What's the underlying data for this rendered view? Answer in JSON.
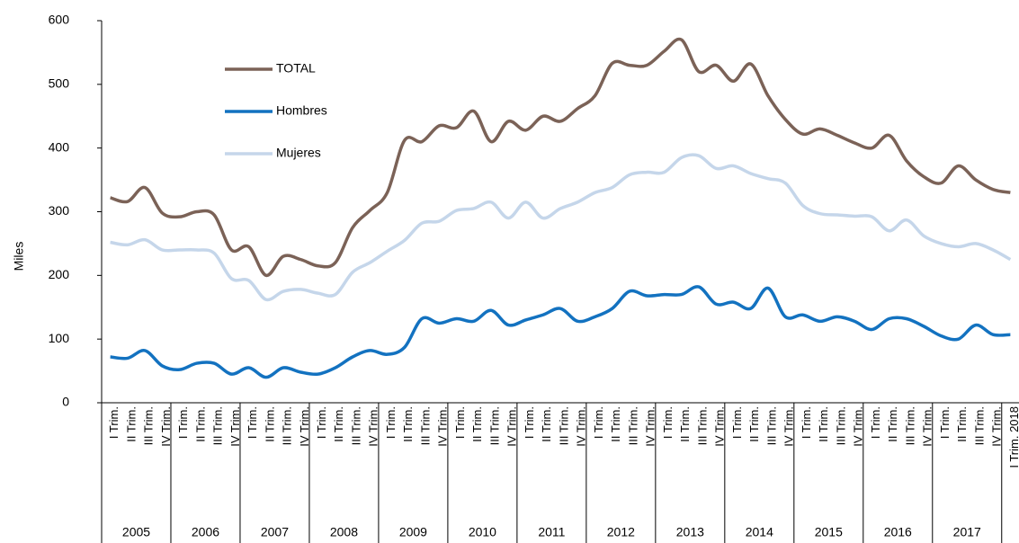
{
  "chart_data": {
    "type": "line",
    "y_label": "Miles",
    "categories": [
      "I Trim.",
      "II Trim.",
      "III Trim.",
      "IV Trim.",
      "I Trim.",
      "II Trim.",
      "III Trim.",
      "IV Trim.",
      "I Trim.",
      "II Trim.",
      "III Trim.",
      "IV Trim.",
      "I Trim.",
      "II Trim.",
      "III Trim.",
      "IV Trim.",
      "I Trim.",
      "II Trim.",
      "III Trim.",
      "IV Trim.",
      "I Trim.",
      "II Trim.",
      "III Trim.",
      "IV Trim.",
      "I Trim.",
      "II Trim.",
      "III Trim.",
      "IV Trim.",
      "I Trim.",
      "II Trim.",
      "III Trim.",
      "IV Trim.",
      "I Trim.",
      "II Trim.",
      "III Trim.",
      "IV Trim.",
      "I Trim.",
      "II Trim.",
      "III Trim.",
      "IV Trim.",
      "I Trim.",
      "II Trim.",
      "III Trim.",
      "IV Trim.",
      "I Trim.",
      "II Trim.",
      "III Trim.",
      "IV Trim.",
      "I Trim.",
      "II Trim.",
      "III Trim.",
      "IV Trim.",
      "I Trim. 2018"
    ],
    "years": [
      "2005",
      "2006",
      "2007",
      "2008",
      "2009",
      "2010",
      "2011",
      "2012",
      "2013",
      "2014",
      "2015",
      "2016",
      "2017"
    ],
    "series": [
      {
        "name": "TOTAL",
        "color": "#7b6257",
        "values": [
          322,
          316,
          338,
          298,
          292,
          300,
          295,
          240,
          245,
          200,
          230,
          225,
          215,
          220,
          275,
          302,
          330,
          412,
          410,
          435,
          432,
          458,
          410,
          442,
          428,
          450,
          442,
          462,
          482,
          533,
          530,
          530,
          552,
          570,
          520,
          530,
          505,
          532,
          482,
          445,
          422,
          430,
          420,
          408,
          400,
          420,
          380,
          355,
          345,
          372,
          350,
          335,
          330
        ]
      },
      {
        "name": "Hombres",
        "color": "#1372c0",
        "values": [
          72,
          70,
          82,
          58,
          52,
          62,
          62,
          45,
          55,
          40,
          55,
          48,
          45,
          55,
          72,
          82,
          76,
          87,
          132,
          125,
          132,
          128,
          145,
          122,
          130,
          138,
          148,
          128,
          135,
          148,
          175,
          168,
          170,
          170,
          182,
          155,
          158,
          148,
          180,
          135,
          138,
          128,
          135,
          128,
          115,
          132,
          132,
          120,
          105,
          100,
          122,
          107,
          107
        ]
      },
      {
        "name": "Mujeres",
        "color": "#c5d6ea",
        "values": [
          252,
          248,
          256,
          240,
          240,
          240,
          235,
          195,
          192,
          162,
          175,
          178,
          172,
          170,
          205,
          220,
          238,
          255,
          282,
          285,
          302,
          305,
          315,
          290,
          315,
          290,
          305,
          315,
          330,
          338,
          358,
          362,
          362,
          385,
          388,
          368,
          372,
          360,
          352,
          345,
          310,
          297,
          295,
          293,
          292,
          270,
          287,
          262,
          250,
          245,
          250,
          240,
          225
        ]
      }
    ],
    "ylim": [
      0,
      600
    ],
    "yticks": [
      0,
      100,
      200,
      300,
      400,
      500,
      600
    ],
    "grid": false
  }
}
